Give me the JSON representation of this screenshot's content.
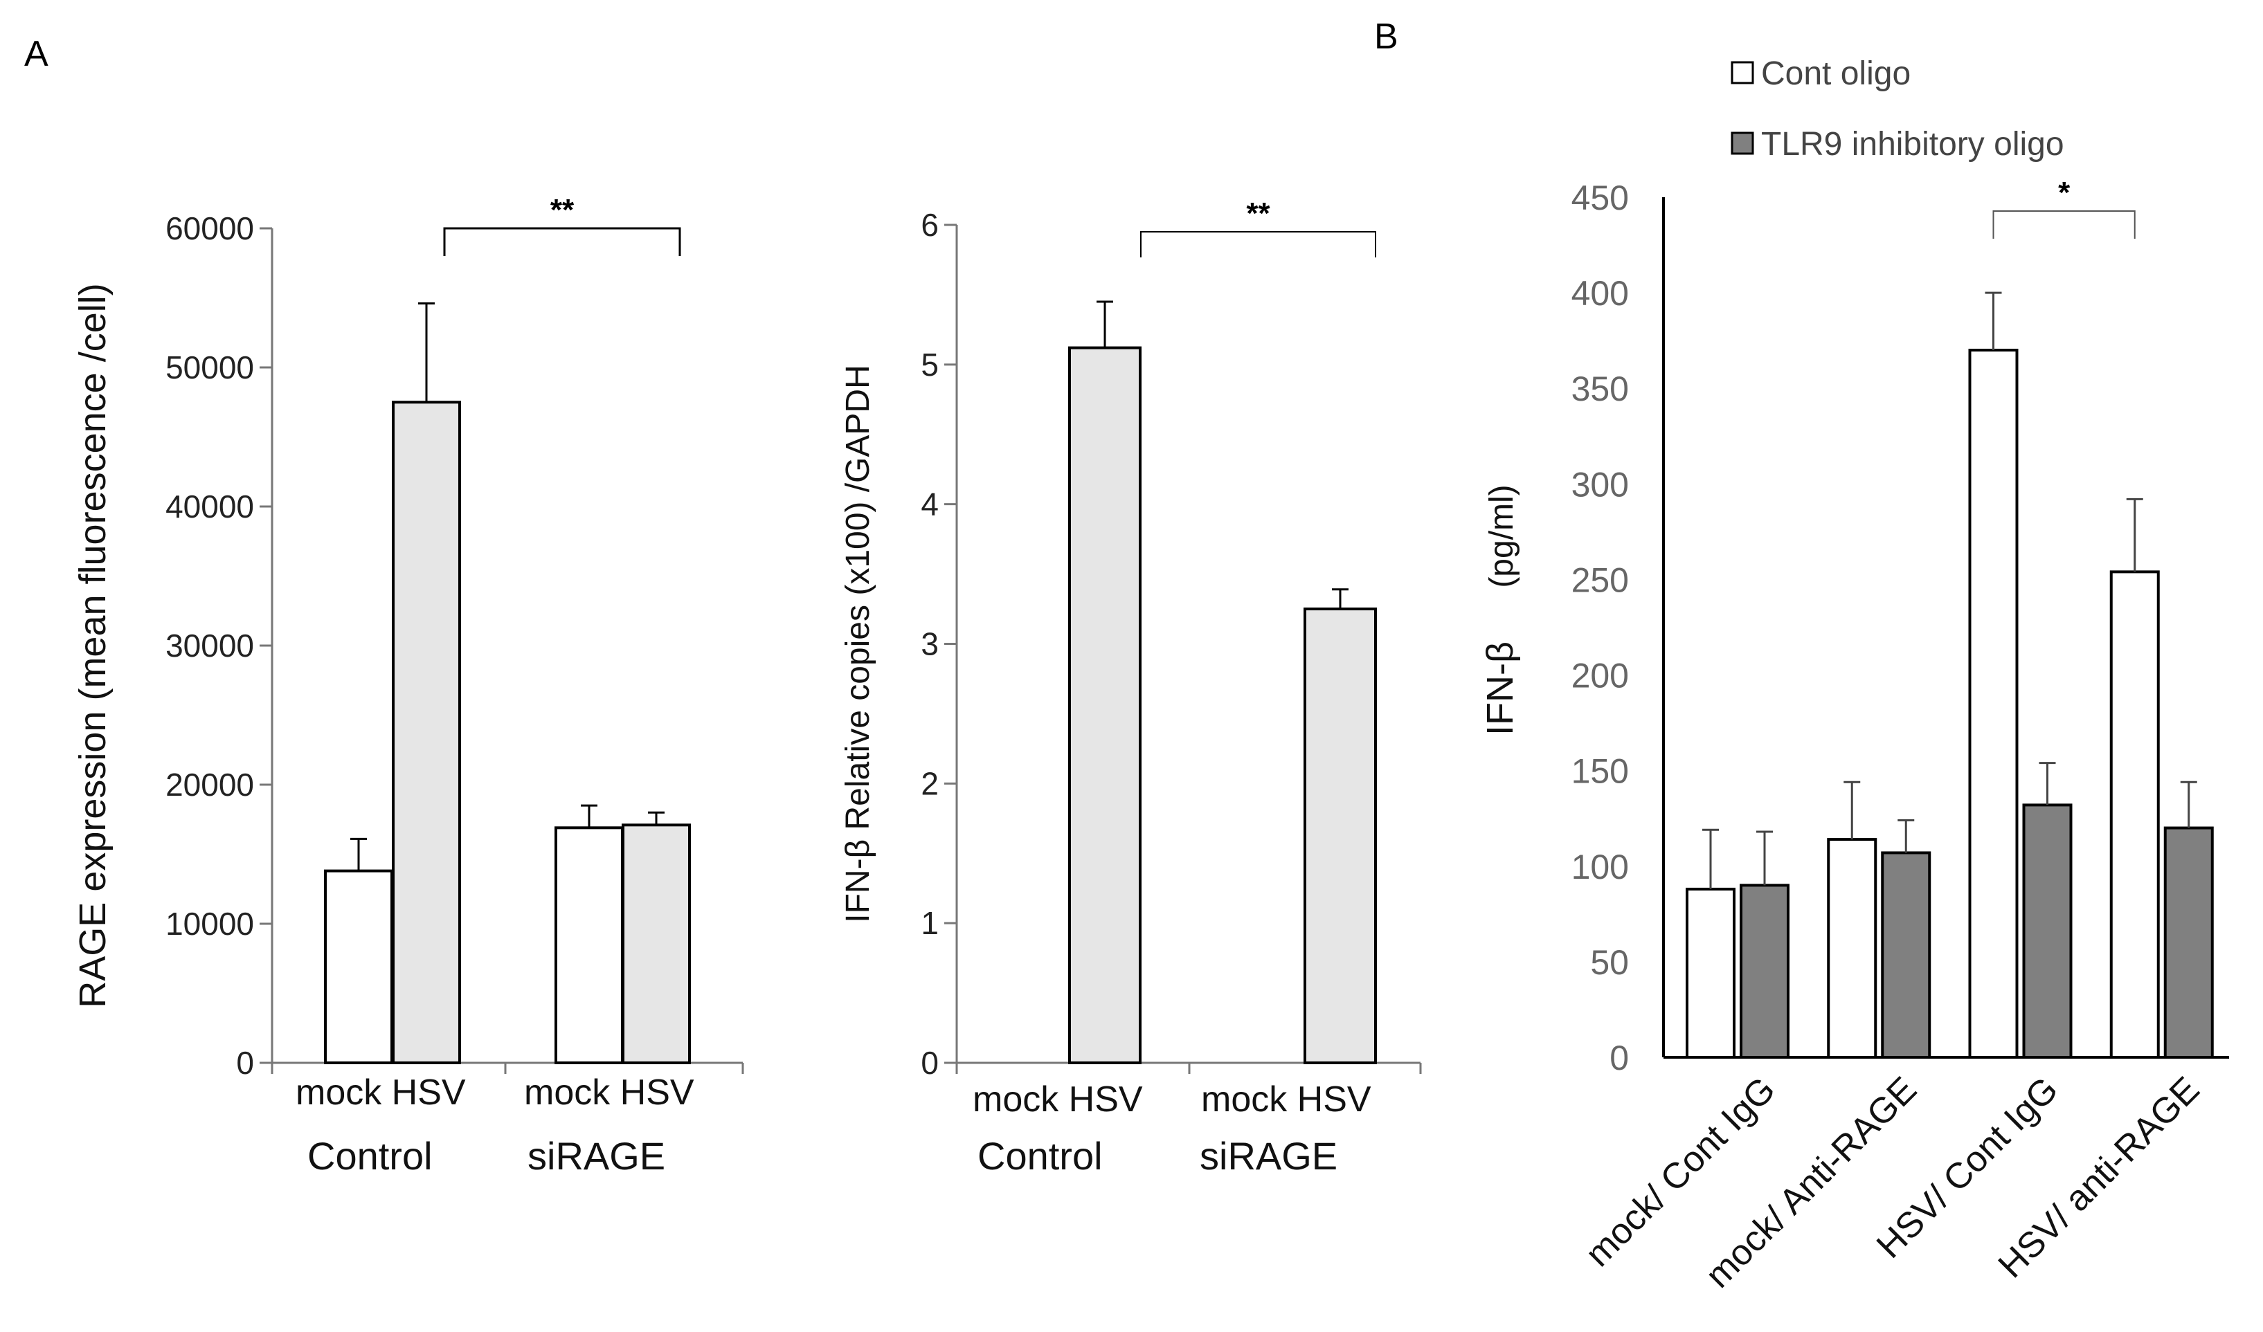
{
  "panels": {
    "a_letter": "A",
    "b_letter": "B"
  },
  "chart_data": [
    {
      "id": "A1",
      "type": "bar",
      "title": "",
      "ylabel": "RAGE expression (mean fluorescence /cell)",
      "ylim": [
        0,
        60000
      ],
      "yticks": [
        "0",
        "10000",
        "20000",
        "30000",
        "40000",
        "50000",
        "60000"
      ],
      "groups": [
        "Control",
        "siRAGE"
      ],
      "bar_labels": [
        "mock HSV",
        "mock HSV"
      ],
      "bars": [
        {
          "group": "Control",
          "cond": "mock",
          "value": 13800,
          "err": 2300,
          "color": "#ffffff"
        },
        {
          "group": "Control",
          "cond": "HSV",
          "value": 47500,
          "err": 7100,
          "color": "#e6e6e6"
        },
        {
          "group": "siRAGE",
          "cond": "mock",
          "value": 16900,
          "err": 1600,
          "color": "#ffffff"
        },
        {
          "group": "siRAGE",
          "cond": "HSV",
          "value": 17100,
          "err": 900,
          "color": "#e6e6e6"
        }
      ],
      "significance": "**"
    },
    {
      "id": "A2",
      "type": "bar",
      "title": "",
      "ylabel": "IFN-β Relative copies (x100) /GAPDH",
      "ylim": [
        0,
        6
      ],
      "yticks": [
        "0",
        "1",
        "2",
        "3",
        "4",
        "5",
        "6"
      ],
      "groups": [
        "Control",
        "siRAGE"
      ],
      "bar_labels": [
        "mock HSV",
        "mock HSV"
      ],
      "bars": [
        {
          "group": "Control",
          "cond": "mock",
          "value": 0,
          "err": 0,
          "color": "#ffffff"
        },
        {
          "group": "Control",
          "cond": "HSV",
          "value": 5.12,
          "err": 0.33,
          "color": "#e6e6e6"
        },
        {
          "group": "siRAGE",
          "cond": "mock",
          "value": 0,
          "err": 0,
          "color": "#ffffff"
        },
        {
          "group": "siRAGE",
          "cond": "HSV",
          "value": 3.25,
          "err": 0.14,
          "color": "#e6e6e6"
        }
      ],
      "significance": "**"
    },
    {
      "id": "B",
      "type": "bar",
      "title": "",
      "ylabel_main": "IFN-β",
      "ylabel_unit": "(pg/ml)",
      "ylim": [
        0,
        450
      ],
      "yticks": [
        "0",
        "50",
        "100",
        "150",
        "200",
        "250",
        "300",
        "350",
        "400",
        "450"
      ],
      "categories": [
        "mock/ Cont IgG",
        "mock/ Anti-RAGE",
        "HSV/ Cont IgG",
        "HSV/ anti-RAGE"
      ],
      "series": [
        {
          "name": "Cont oligo",
          "color": "#ffffff",
          "values": [
            88,
            114,
            370,
            254
          ],
          "err": [
            31,
            30,
            30,
            38
          ]
        },
        {
          "name": "TLR9 inhibitory oligo",
          "color": "#808080",
          "values": [
            90,
            107,
            132,
            120
          ],
          "err": [
            28,
            17,
            22,
            24
          ]
        }
      ],
      "significance": "*"
    }
  ]
}
